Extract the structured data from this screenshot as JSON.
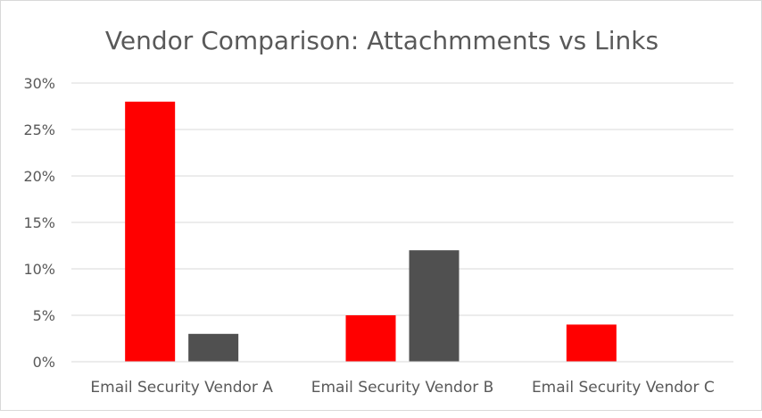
{
  "chart_data": {
    "type": "bar",
    "title": "Vendor Comparison: Attachmments vs Links",
    "xlabel": "",
    "ylabel": "",
    "categories": [
      "Email Security Vendor A",
      "Email Security Vendor B",
      "Email Security Vendor C"
    ],
    "series": [
      {
        "color": "#ff0000",
        "values": [
          28,
          5,
          4
        ]
      },
      {
        "color": "#505050",
        "values": [
          3,
          12,
          0
        ]
      }
    ],
    "ylim": [
      0,
      30
    ],
    "yticks": [
      0,
      5,
      10,
      15,
      20,
      25,
      30
    ],
    "ytick_labels": [
      "0%",
      "5%",
      "10%",
      "15%",
      "20%",
      "25%",
      "30%"
    ],
    "grid": true,
    "legend": "none"
  }
}
